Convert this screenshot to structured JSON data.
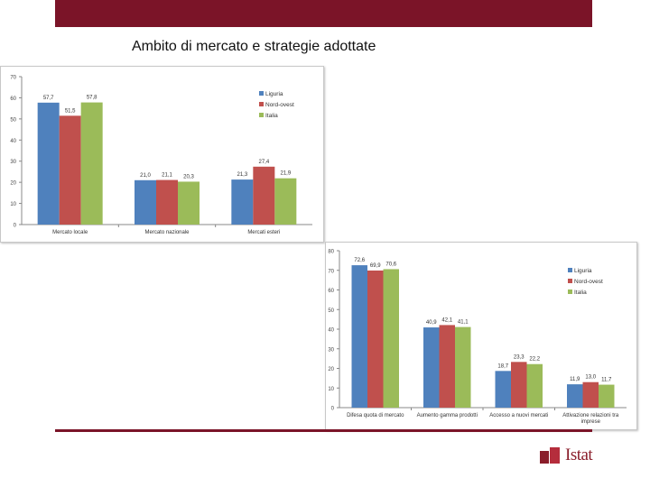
{
  "slide": {
    "title": "Ambito di mercato e strategie adottate",
    "accent_color": "#7b1428",
    "logo_text": "Istat"
  },
  "chart_data": [
    {
      "type": "bar",
      "categories": [
        "Mercato locale",
        "Mercato nazionale",
        "Mercati esteri"
      ],
      "series": [
        {
          "name": "Liguria",
          "color": "#4f81bd",
          "values": [
            57.7,
            21.0,
            21.3
          ]
        },
        {
          "name": "Nord-ovest",
          "color": "#c0504d",
          "values": [
            51.5,
            21.1,
            27.4
          ]
        },
        {
          "name": "Italia",
          "color": "#9bbb59",
          "values": [
            57.8,
            20.3,
            21.9
          ]
        }
      ],
      "value_labels": [
        [
          "57,7",
          "21,0",
          "21,3"
        ],
        [
          "51,5",
          "21,1",
          "27,4"
        ],
        [
          "57,8",
          "20,3",
          "21,9"
        ]
      ],
      "yticks": [
        "0",
        "10",
        "20",
        "30",
        "40",
        "50",
        "60",
        "70"
      ],
      "ylim": [
        0,
        70
      ],
      "legend_position": "top-right",
      "grid": false
    },
    {
      "type": "bar",
      "categories": [
        "Difesa quota di mercato",
        "Aumento gamma prodotti",
        "Accesso a nuovi mercati",
        "Attivazione relazioni tra imprese"
      ],
      "series": [
        {
          "name": "Liguria",
          "color": "#4f81bd",
          "values": [
            72.6,
            40.9,
            18.7,
            11.9
          ]
        },
        {
          "name": "Nord-ovest",
          "color": "#c0504d",
          "values": [
            69.9,
            42.1,
            23.3,
            13.0
          ]
        },
        {
          "name": "Italia",
          "color": "#9bbb59",
          "values": [
            70.6,
            41.1,
            22.2,
            11.7
          ]
        }
      ],
      "value_labels": [
        [
          "72,6",
          "40,9",
          "18,7",
          "11,9"
        ],
        [
          "69,9",
          "42,1",
          "23,3",
          "13,0"
        ],
        [
          "70,6",
          "41,1",
          "22,2",
          "11,7"
        ]
      ],
      "yticks": [
        "0",
        "10",
        "20",
        "30",
        "40",
        "50",
        "60",
        "70",
        "80"
      ],
      "ylim": [
        0,
        80
      ],
      "legend_position": "top-right",
      "grid": false
    }
  ]
}
